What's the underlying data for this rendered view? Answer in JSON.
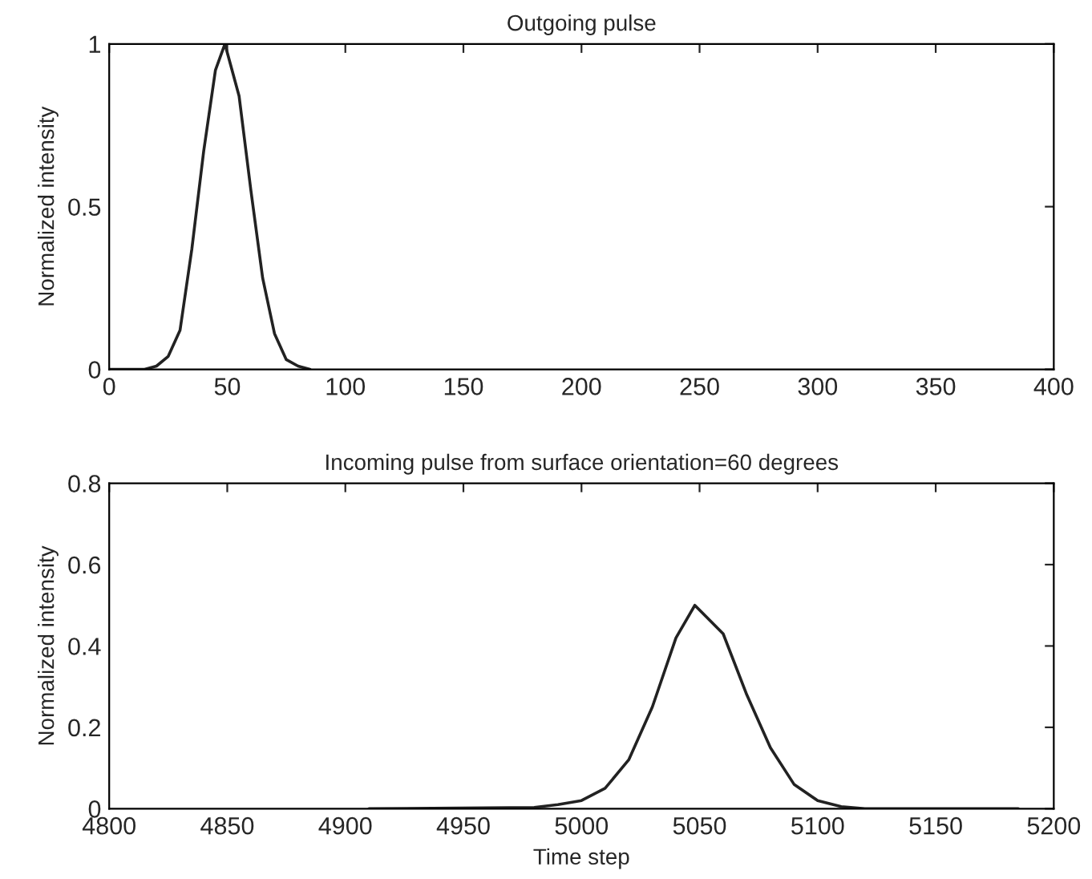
{
  "chart_data": [
    {
      "type": "line",
      "title": "Outgoing pulse",
      "ylabel": "Normalized intensity",
      "x": [
        0,
        10,
        15,
        20,
        25,
        30,
        35,
        40,
        45,
        49,
        55,
        60,
        65,
        70,
        75,
        80,
        85
      ],
      "series": [
        {
          "color": "#222222",
          "values": [
            0,
            0,
            0,
            0.01,
            0.04,
            0.12,
            0.37,
            0.67,
            0.92,
            1,
            0.84,
            0.55,
            0.28,
            0.11,
            0.03,
            0.01,
            0
          ]
        }
      ],
      "xlim": [
        0,
        400
      ],
      "xticks": [
        0,
        50,
        100,
        150,
        200,
        250,
        300,
        350,
        400
      ],
      "ylim": [
        0,
        1
      ],
      "yticks": [
        0,
        0.5,
        1
      ],
      "grid": false,
      "legend": false
    },
    {
      "type": "line",
      "title": "Incoming pulse from surface orientation=60 degrees",
      "xlabel": "Time step",
      "ylabel": "Normalized intensity",
      "x": [
        4910,
        4980,
        4990,
        5000,
        5010,
        5020,
        5030,
        5040,
        5048,
        5060,
        5070,
        5080,
        5090,
        5100,
        5110,
        5120,
        5185
      ],
      "series": [
        {
          "color": "#222222",
          "values": [
            0,
            0.003,
            0.01,
            0.02,
            0.05,
            0.12,
            0.25,
            0.42,
            0.5,
            0.43,
            0.28,
            0.15,
            0.06,
            0.02,
            0.005,
            0,
            0
          ]
        }
      ],
      "xlim": [
        4800,
        5200
      ],
      "xticks": [
        4800,
        4850,
        4900,
        4950,
        5000,
        5050,
        5100,
        5150,
        5200
      ],
      "ylim": [
        0,
        0.8
      ],
      "yticks": [
        0,
        0.2,
        0.4,
        0.6,
        0.8
      ],
      "grid": false,
      "legend": false
    }
  ]
}
